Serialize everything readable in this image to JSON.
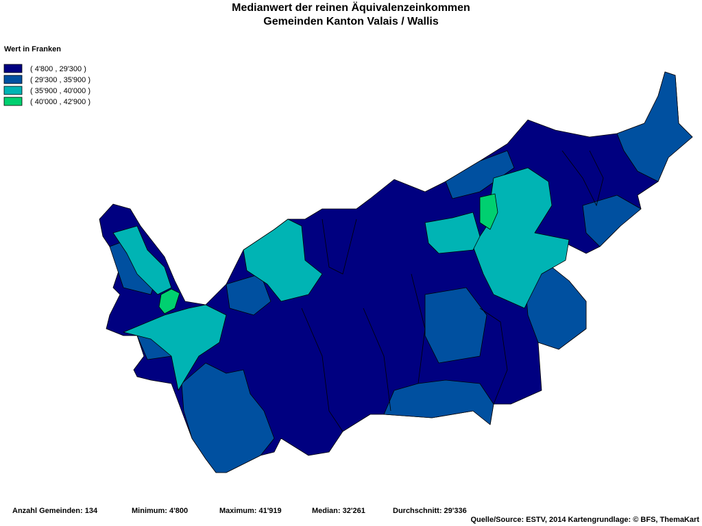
{
  "title": [
    "Medianwert der reinen Äquivalenzeinkommen",
    "Gemeinden Kanton Valais / Wallis"
  ],
  "legend": {
    "title": "Wert in Franken",
    "items": [
      {
        "label": "( 4'800 , 29'300 )",
        "color": "#000080"
      },
      {
        "label": "( 29'300 , 35'900 )",
        "color": "#0050a0"
      },
      {
        "label": "( 35'900 , 40'000 )",
        "color": "#00b4b4"
      },
      {
        "label": "( 40'000 , 42'900 )",
        "color": "#00d070"
      }
    ]
  },
  "footer": {
    "stats": [
      "Anzahl Gemeinden: 134",
      "Minimum: 4'800",
      "Maximum: 41'919",
      "Median: 32'261",
      "Durchschnitt: 29'336"
    ],
    "source": "Quelle/Source: ESTV, 2014 Kartengrundlage: © BFS, ThemaKart"
  }
}
